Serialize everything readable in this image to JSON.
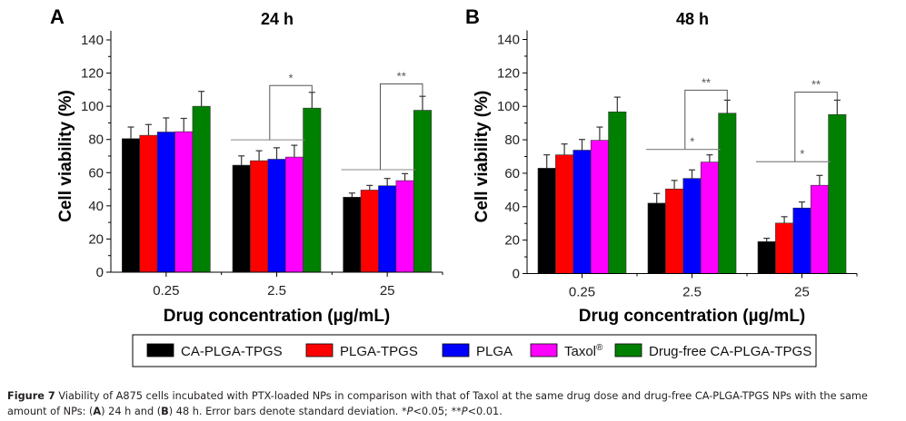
{
  "chart_data": [
    {
      "type": "bar",
      "panel_label": "A",
      "title": "24 h",
      "xlabel": "Drug concentration (µg/mL)",
      "ylabel": "Cell viability (%)",
      "ylim": [
        0,
        140
      ],
      "yticks": [
        0,
        20,
        40,
        60,
        80,
        100,
        120,
        140
      ],
      "categories": [
        "0.25",
        "2.5",
        "25"
      ],
      "series": [
        {
          "name": "CA-PLGA-TPGS",
          "color": "#000000",
          "values": [
            80.5,
            64.5,
            45.2
          ],
          "errors": [
            7,
            5.6,
            2.5
          ]
        },
        {
          "name": "PLGA-TPGS",
          "color": "#ff0000",
          "values": [
            82.5,
            67.2,
            49.5
          ],
          "errors": [
            6.5,
            6,
            2.8
          ]
        },
        {
          "name": "PLGA",
          "color": "#0000ff",
          "values": [
            84.5,
            68.1,
            52.1
          ],
          "errors": [
            8.5,
            6.9,
            4.4
          ]
        },
        {
          "name": "Taxol®",
          "color": "#ff00ff",
          "values": [
            84.7,
            69.4,
            55.2
          ],
          "errors": [
            8,
            7.1,
            4.2
          ]
        },
        {
          "name": "Drug-free CA-PLGA-TPGS",
          "color": "#008000",
          "values": [
            100,
            98.9,
            97.6
          ],
          "errors": [
            9,
            9.5,
            8.4
          ]
        }
      ],
      "annotations": [
        {
          "category": "2.5",
          "label": "*",
          "from_series": [
            0,
            3
          ],
          "to_series": 4,
          "baseline": 79.8,
          "top": 112.5
        },
        {
          "category": "25",
          "label": "**",
          "from_series": [
            0,
            3
          ],
          "to_series": 4,
          "baseline": 61.8,
          "top": 113.5
        }
      ]
    },
    {
      "type": "bar",
      "panel_label": "B",
      "title": "48 h",
      "xlabel": "Drug concentration (µg/mL)",
      "ylabel": "Cell viability (%)",
      "ylim": [
        0,
        140
      ],
      "yticks": [
        0,
        20,
        40,
        60,
        80,
        100,
        120,
        140
      ],
      "categories": [
        "0.25",
        "2.5",
        "25"
      ],
      "series": [
        {
          "name": "CA-PLGA-TPGS",
          "color": "#000000",
          "values": [
            63,
            42.1,
            19.1
          ],
          "errors": [
            8,
            5.8,
            2
          ]
        },
        {
          "name": "PLGA-TPGS",
          "color": "#ff0000",
          "values": [
            71,
            50.6,
            30.2
          ],
          "errors": [
            6.5,
            5.1,
            3.8
          ]
        },
        {
          "name": "PLGA",
          "color": "#0000ff",
          "values": [
            73.8,
            56.9,
            39.2
          ],
          "errors": [
            6.4,
            5.1,
            3.6
          ]
        },
        {
          "name": "Taxol®",
          "color": "#ff00ff",
          "values": [
            79.7,
            66.7,
            52.8
          ],
          "errors": [
            7.9,
            4.3,
            5.9
          ]
        },
        {
          "name": "Drug-free CA-PLGA-TPGS",
          "color": "#008000",
          "values": [
            96.7,
            95.9,
            95.1
          ],
          "errors": [
            8.8,
            7.8,
            8.6
          ]
        }
      ],
      "annotations": [
        {
          "category": "2.5",
          "label": "*",
          "from_series": [
            0,
            3
          ],
          "to_series": 3,
          "baseline": 74.3,
          "top": 74.3
        },
        {
          "category": "2.5",
          "label": "**",
          "from_series": [
            0,
            3
          ],
          "to_series": 4,
          "baseline": 74.3,
          "top": 109.7
        },
        {
          "category": "25",
          "label": "*",
          "from_series": [
            0,
            3
          ],
          "to_series": 3,
          "baseline": 66.9,
          "top": 66.9
        },
        {
          "category": "25",
          "label": "**",
          "from_series": [
            0,
            3
          ],
          "to_series": 4,
          "baseline": 66.9,
          "top": 108.5
        }
      ]
    }
  ],
  "legend": {
    "placement": "bottom-center",
    "items": [
      {
        "label": "CA-PLGA-TPGS",
        "color": "#000000"
      },
      {
        "label": "PLGA-TPGS",
        "color": "#ff0000"
      },
      {
        "label": "PLGA",
        "color": "#0000ff"
      },
      {
        "label": "Taxol",
        "sup": "®",
        "color": "#ff00ff"
      },
      {
        "label": "Drug-free CA-PLGA-TPGS",
        "color": "#008000"
      }
    ]
  },
  "caption": {
    "figure_label": "Figure 7",
    "text1": " Viability of A875 cells incubated with PTX-loaded NPs in comparison with that of Taxol at the same drug dose and drug-free CA-PLGA-TPGS NPs with the same amount of NPs: (",
    "a_label": "A",
    "text2": ") 24 h and (",
    "b_label": "B",
    "text3": ") 48 h. Error bars denote standard deviation. *",
    "p1": "P",
    "text4": "<0.05; **",
    "p2": "P",
    "text5": "<0.01."
  }
}
